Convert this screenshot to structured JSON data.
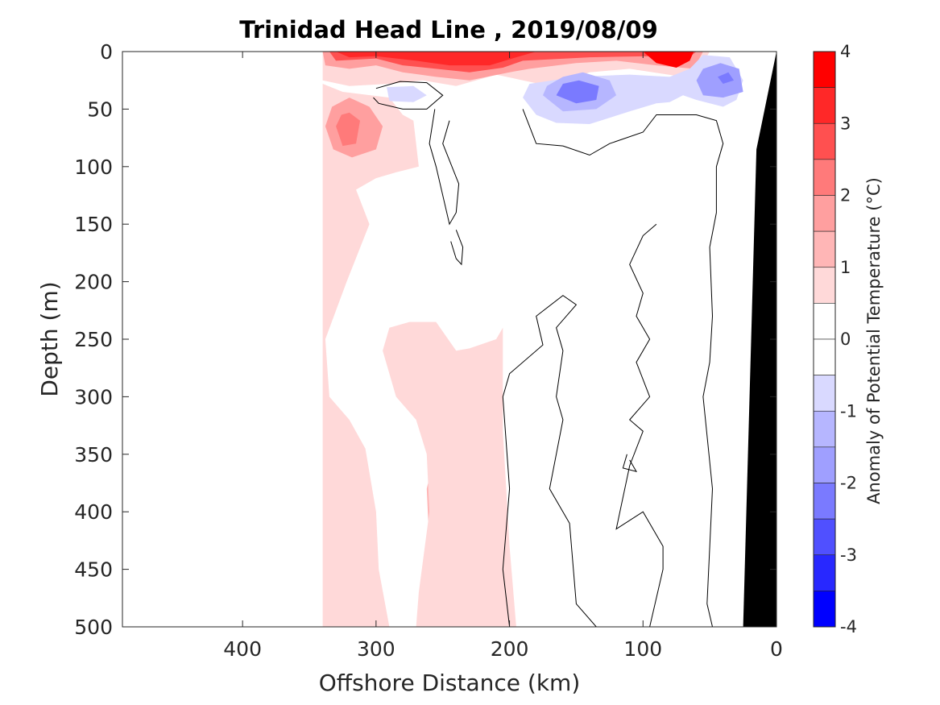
{
  "chart_data": {
    "type": "heatmap",
    "title": "Trinidad Head Line , 2019/08/09",
    "xlabel": "Offshore Distance (km)",
    "ylabel": "Depth (m)",
    "xlim": [
      490,
      0
    ],
    "ylim": [
      0,
      500
    ],
    "x_reversed": true,
    "y_reversed": true,
    "xticks": [
      400,
      300,
      200,
      100,
      0
    ],
    "yticks": [
      0,
      50,
      100,
      150,
      200,
      250,
      300,
      350,
      400,
      450,
      500
    ],
    "colorbar": {
      "label": "Anomaly of Potential Temperature (°C)",
      "ticks": [
        4,
        3,
        2,
        1,
        0,
        -1,
        -2,
        -3,
        -4
      ],
      "range": [
        -4,
        4
      ],
      "levels": [
        {
          "min": 3.5,
          "max": 4,
          "color": "#ff0000"
        },
        {
          "min": 3,
          "max": 3.5,
          "color": "#ff2828"
        },
        {
          "min": 2.5,
          "max": 3,
          "color": "#ff5050"
        },
        {
          "min": 2,
          "max": 2.5,
          "color": "#ff7a7a"
        },
        {
          "min": 1.5,
          "max": 2,
          "color": "#ff9f9f"
        },
        {
          "min": 1,
          "max": 1.5,
          "color": "#ffb6b6"
        },
        {
          "min": 0.5,
          "max": 1,
          "color": "#ffd9d9"
        },
        {
          "min": 0,
          "max": 0.5,
          "color": "#ffffff"
        },
        {
          "min": -0.5,
          "max": 0,
          "color": "#ffffff"
        },
        {
          "min": -1,
          "max": -0.5,
          "color": "#d9d9ff"
        },
        {
          "min": -1.5,
          "max": -1,
          "color": "#b6b6ff"
        },
        {
          "min": -2,
          "max": -1.5,
          "color": "#9f9fff"
        },
        {
          "min": -2.5,
          "max": -2,
          "color": "#7a7aff"
        },
        {
          "min": -3,
          "max": -2.5,
          "color": "#5050ff"
        },
        {
          "min": -3.5,
          "max": -3,
          "color": "#2828ff"
        },
        {
          "min": -4,
          "max": -3.5,
          "color": "#0000ff"
        }
      ]
    },
    "regions": [
      {
        "name": "warm-plume-inshore-core",
        "level": 1.5,
        "color": "#ffb6b6",
        "outline": [
          [
            240,
            328
          ],
          [
            255,
            345
          ],
          [
            262,
            380
          ],
          [
            260,
            430
          ],
          [
            257,
            480
          ],
          [
            258,
            500
          ],
          [
            228,
            500
          ],
          [
            225,
            470
          ],
          [
            222,
            420
          ],
          [
            225,
            370
          ],
          [
            230,
            340
          ]
        ]
      },
      {
        "name": "warm-band-offshore",
        "level": 0.75,
        "color": "#ffd9d9",
        "outline": [
          [
            340,
            28
          ],
          [
            325,
            35
          ],
          [
            290,
            40
          ],
          [
            280,
            55
          ],
          [
            272,
            60
          ],
          [
            268,
            100
          ],
          [
            285,
            105
          ],
          [
            300,
            110
          ],
          [
            315,
            120
          ],
          [
            305,
            150
          ],
          [
            322,
            200
          ],
          [
            338,
            250
          ],
          [
            335,
            300
          ],
          [
            320,
            320
          ],
          [
            308,
            345
          ],
          [
            300,
            400
          ],
          [
            298,
            450
          ],
          [
            290,
            500
          ],
          [
            340,
            500
          ]
        ]
      },
      {
        "name": "warm-band-mid",
        "level": 0.75,
        "color": "#ffd9d9",
        "outline": [
          [
            255,
            235
          ],
          [
            240,
            260
          ],
          [
            230,
            258
          ],
          [
            210,
            250
          ],
          [
            205,
            240
          ],
          [
            205,
            330
          ],
          [
            200,
            430
          ],
          [
            195,
            500
          ],
          [
            270,
            500
          ],
          [
            268,
            470
          ],
          [
            260,
            400
          ],
          [
            262,
            350
          ],
          [
            270,
            320
          ],
          [
            285,
            300
          ],
          [
            290,
            280
          ],
          [
            295,
            260
          ],
          [
            290,
            240
          ],
          [
            275,
            235
          ]
        ]
      },
      {
        "name": "warm-patch-50m",
        "level": 2.0,
        "color": "#ff9f9f",
        "outline": [
          [
            320,
            40
          ],
          [
            305,
            48
          ],
          [
            295,
            65
          ],
          [
            300,
            85
          ],
          [
            318,
            92
          ],
          [
            332,
            85
          ],
          [
            338,
            65
          ],
          [
            333,
            48
          ]
        ]
      },
      {
        "name": "warm-patch-50m-core",
        "level": 2.5,
        "color": "#ff7a7a",
        "outline": [
          [
            320,
            53
          ],
          [
            312,
            60
          ],
          [
            315,
            80
          ],
          [
            325,
            82
          ],
          [
            330,
            65
          ],
          [
            326,
            55
          ]
        ]
      },
      {
        "name": "warm-surface-a",
        "level": 1.0,
        "color": "#ffd9d9",
        "outline": [
          [
            340,
            0
          ],
          [
            340,
            25
          ],
          [
            320,
            30
          ],
          [
            290,
            28
          ],
          [
            265,
            25
          ],
          [
            240,
            30
          ],
          [
            225,
            25
          ],
          [
            210,
            20
          ],
          [
            190,
            25
          ],
          [
            170,
            30
          ],
          [
            140,
            18
          ],
          [
            110,
            15
          ],
          [
            70,
            22
          ],
          [
            55,
            10
          ],
          [
            50,
            0
          ]
        ]
      },
      {
        "name": "warm-surface-b",
        "level": 2.0,
        "color": "#ff9f9f",
        "outline": [
          [
            340,
            0
          ],
          [
            338,
            12
          ],
          [
            320,
            15
          ],
          [
            300,
            12
          ],
          [
            280,
            18
          ],
          [
            255,
            22
          ],
          [
            230,
            25
          ],
          [
            200,
            18
          ],
          [
            185,
            15
          ],
          [
            150,
            10
          ],
          [
            120,
            8
          ],
          [
            90,
            12
          ],
          [
            62,
            15
          ],
          [
            55,
            0
          ]
        ]
      },
      {
        "name": "warm-surface-c",
        "level": 3.0,
        "color": "#ff5050",
        "outline": [
          [
            335,
            0
          ],
          [
            330,
            8
          ],
          [
            300,
            6
          ],
          [
            280,
            12
          ],
          [
            255,
            15
          ],
          [
            230,
            18
          ],
          [
            205,
            14
          ],
          [
            190,
            8
          ],
          [
            140,
            5
          ],
          [
            95,
            4
          ],
          [
            70,
            9
          ],
          [
            60,
            0
          ]
        ]
      },
      {
        "name": "warm-surface-d",
        "level": 3.5,
        "color": "#ff2828",
        "outline": [
          [
            330,
            0
          ],
          [
            320,
            5
          ],
          [
            300,
            4
          ],
          [
            270,
            8
          ],
          [
            245,
            12
          ],
          [
            215,
            12
          ],
          [
            195,
            5
          ],
          [
            180,
            0
          ]
        ]
      },
      {
        "name": "warm-surface-e",
        "level": 3.75,
        "color": "#ff0000",
        "outline": [
          [
            100,
            0
          ],
          [
            90,
            10
          ],
          [
            75,
            14
          ],
          [
            65,
            8
          ],
          [
            62,
            0
          ]
        ]
      },
      {
        "name": "cool-patch-a",
        "level": -0.75,
        "color": "#d9d9ff",
        "outline": [
          [
            190,
            40
          ],
          [
            180,
            55
          ],
          [
            165,
            62
          ],
          [
            140,
            63
          ],
          [
            110,
            52
          ],
          [
            90,
            45
          ],
          [
            80,
            44
          ],
          [
            70,
            38
          ],
          [
            60,
            42
          ],
          [
            40,
            48
          ],
          [
            30,
            42
          ],
          [
            25,
            25
          ],
          [
            35,
            5
          ],
          [
            55,
            3
          ],
          [
            65,
            15
          ],
          [
            80,
            22
          ],
          [
            110,
            20
          ],
          [
            150,
            22
          ],
          [
            185,
            28
          ]
        ]
      },
      {
        "name": "cool-patch-b",
        "level": -1.25,
        "color": "#b6b6ff",
        "outline": [
          [
            175,
            38
          ],
          [
            160,
            52
          ],
          [
            135,
            50
          ],
          [
            120,
            38
          ],
          [
            125,
            25
          ],
          [
            145,
            18
          ],
          [
            160,
            22
          ],
          [
            172,
            30
          ]
        ]
      },
      {
        "name": "cool-patch-c",
        "level": -1.75,
        "color": "#7a7aff",
        "outline": [
          [
            165,
            38
          ],
          [
            150,
            45
          ],
          [
            135,
            42
          ],
          [
            133,
            30
          ],
          [
            148,
            25
          ],
          [
            160,
            28
          ]
        ]
      },
      {
        "name": "cool-patch-d",
        "level": -1.25,
        "color": "#9f9fff",
        "outline": [
          [
            60,
            25
          ],
          [
            55,
            38
          ],
          [
            40,
            40
          ],
          [
            25,
            35
          ],
          [
            28,
            15
          ],
          [
            42,
            10
          ],
          [
            55,
            15
          ]
        ]
      },
      {
        "name": "cool-patch-e",
        "level": -1.75,
        "color": "#7a7aff",
        "outline": [
          [
            44,
            22
          ],
          [
            40,
            28
          ],
          [
            32,
            25
          ],
          [
            36,
            18
          ]
        ]
      },
      {
        "name": "cool-patch-f",
        "level": -0.75,
        "color": "#d9d9ff",
        "outline": [
          [
            292,
            31
          ],
          [
            272,
            30
          ],
          [
            262,
            38
          ],
          [
            272,
            44
          ],
          [
            290,
            43
          ]
        ]
      }
    ],
    "zero_contours": [
      [
        [
          300,
          32
        ],
        [
          282,
          26
        ],
        [
          262,
          27
        ],
        [
          250,
          38
        ],
        [
          262,
          50
        ],
        [
          280,
          50
        ],
        [
          298,
          45
        ],
        [
          302,
          40
        ]
      ],
      [
        [
          256,
          50
        ],
        [
          260,
          80
        ],
        [
          255,
          100
        ],
        [
          245,
          150
        ],
        [
          240,
          140
        ],
        [
          238,
          115
        ],
        [
          250,
          80
        ],
        [
          245,
          60
        ]
      ],
      [
        [
          240,
          155
        ],
        [
          235,
          170
        ],
        [
          236,
          185
        ],
        [
          240,
          180
        ],
        [
          244,
          165
        ]
      ],
      [
        [
          190,
          50
        ],
        [
          180,
          80
        ],
        [
          160,
          82
        ],
        [
          140,
          90
        ],
        [
          125,
          80
        ],
        [
          100,
          70
        ],
        [
          90,
          55
        ],
        [
          60,
          55
        ],
        [
          45,
          60
        ],
        [
          40,
          80
        ],
        [
          45,
          100
        ],
        [
          45,
          140
        ],
        [
          50,
          170
        ],
        [
          48,
          230
        ],
        [
          50,
          270
        ],
        [
          55,
          300
        ],
        [
          48,
          380
        ],
        [
          52,
          480
        ],
        [
          48,
          500
        ]
      ],
      [
        [
          200,
          500
        ],
        [
          205,
          450
        ],
        [
          200,
          380
        ],
        [
          205,
          300
        ],
        [
          200,
          280
        ],
        [
          175,
          255
        ],
        [
          180,
          230
        ],
        [
          160,
          212
        ],
        [
          150,
          220
        ],
        [
          165,
          240
        ],
        [
          160,
          260
        ],
        [
          165,
          300
        ],
        [
          160,
          320
        ],
        [
          170,
          380
        ],
        [
          155,
          410
        ],
        [
          150,
          480
        ],
        [
          135,
          500
        ]
      ],
      [
        [
          110,
          355
        ],
        [
          105,
          365
        ],
        [
          115,
          362
        ],
        [
          112,
          350
        ]
      ],
      [
        [
          90,
          150
        ],
        [
          100,
          160
        ],
        [
          110,
          185
        ],
        [
          100,
          210
        ],
        [
          105,
          230
        ],
        [
          95,
          250
        ],
        [
          105,
          270
        ],
        [
          95,
          300
        ],
        [
          110,
          320
        ],
        [
          100,
          330
        ],
        [
          110,
          360
        ],
        [
          120,
          415
        ],
        [
          100,
          400
        ],
        [
          85,
          430
        ],
        [
          85,
          450
        ],
        [
          95,
          500
        ]
      ]
    ],
    "bathymetry": {
      "name": "seafloor",
      "color": "#000000",
      "outline": [
        [
          0,
          0
        ],
        [
          15,
          85
        ],
        [
          25,
          500
        ],
        [
          0,
          500
        ]
      ]
    }
  }
}
